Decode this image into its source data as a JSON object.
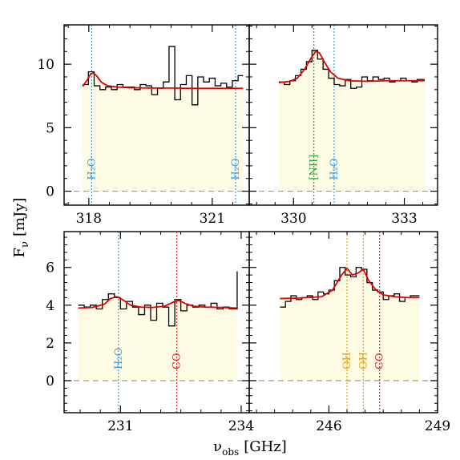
{
  "axis_labels": {
    "ylabel_main": "F",
    "ylabel_sub": "ν",
    "ylabel_unit": "[mJy]",
    "xlabel_main": "ν",
    "xlabel_sub": "obs",
    "xlabel_unit": "[GHz]"
  },
  "colors": {
    "fill": "#fdfbe3",
    "histogram": "#000000",
    "model": "#e00000",
    "zero_line": "#999999",
    "h2o": "#3a9ee0",
    "co": "#e02020",
    "nii": "#30a040",
    "oh": "#f0a000"
  },
  "chart_data": [
    {
      "type": "line",
      "panel": "top-left",
      "xlim": [
        317.4,
        321.9
      ],
      "ylim": [
        -1.1,
        13.1
      ],
      "xticks": [
        318,
        321
      ],
      "xtick_labels": [
        "318",
        "321"
      ],
      "yticks": [
        0,
        5,
        10
      ],
      "ytick_labels": [
        "0",
        "5",
        "10"
      ],
      "show_xtick_labels": true,
      "show_ytick_labels": true,
      "fill_range": [
        317.85,
        321.75
      ],
      "bin_edges": [
        317.85,
        317.99,
        318.13,
        318.27,
        318.41,
        318.55,
        318.69,
        318.83,
        318.97,
        319.11,
        319.25,
        319.39,
        319.53,
        319.67,
        319.81,
        319.95,
        320.09,
        320.23,
        320.37,
        320.51,
        320.65,
        320.79,
        320.93,
        321.07,
        321.21,
        321.35,
        321.49,
        321.63,
        321.75
      ],
      "flux": [
        8.4,
        9.4,
        8.3,
        8.0,
        8.2,
        8.0,
        8.4,
        8.2,
        8.2,
        8.0,
        8.4,
        8.3,
        7.6,
        8.1,
        8.6,
        11.4,
        7.2,
        8.4,
        9.1,
        6.8,
        9.0,
        8.6,
        8.9,
        8.3,
        8.5,
        8.2,
        8.7,
        9.1
      ],
      "model_x": [
        317.85,
        317.95,
        318.05,
        318.12,
        318.2,
        318.3,
        318.45,
        318.7,
        319.0,
        319.5,
        320.0,
        320.5,
        321.0,
        321.5,
        321.75
      ],
      "model_y": [
        8.25,
        8.7,
        9.25,
        9.3,
        9.05,
        8.6,
        8.3,
        8.2,
        8.15,
        8.12,
        8.12,
        8.1,
        8.1,
        8.1,
        8.1
      ],
      "lines": [
        {
          "x": 318.07,
          "label": "H₂O",
          "color_key": "h2o",
          "label_x_offset": -6
        },
        {
          "x": 321.57,
          "label": "H₂O",
          "color_key": "h2o",
          "label_x_offset": -6
        }
      ]
    },
    {
      "type": "line",
      "panel": "top-right",
      "xlim": [
        328.8,
        333.9
      ],
      "ylim": [
        -1.1,
        13.1
      ],
      "xticks": [
        330,
        333
      ],
      "xtick_labels": [
        "330",
        "333"
      ],
      "yticks": [
        0,
        5,
        10
      ],
      "ytick_labels": [],
      "show_xtick_labels": true,
      "show_ytick_labels": false,
      "fill_range": [
        329.6,
        333.55
      ],
      "bin_edges": [
        329.6,
        329.75,
        329.9,
        330.05,
        330.2,
        330.35,
        330.5,
        330.65,
        330.8,
        330.95,
        331.1,
        331.25,
        331.4,
        331.55,
        331.7,
        331.85,
        332.0,
        332.15,
        332.3,
        332.45,
        332.6,
        332.75,
        332.9,
        333.05,
        333.2,
        333.35,
        333.55
      ],
      "flux": [
        8.6,
        8.4,
        8.7,
        9.1,
        9.6,
        10.2,
        11.1,
        10.4,
        9.6,
        8.9,
        8.4,
        8.3,
        8.8,
        8.1,
        8.2,
        9.0,
        8.7,
        9.0,
        8.8,
        8.9,
        8.6,
        8.7,
        8.9,
        8.7,
        8.6,
        8.8
      ],
      "model_x": [
        329.6,
        329.9,
        330.1,
        330.3,
        330.5,
        330.6,
        330.7,
        330.85,
        331.0,
        331.2,
        331.5,
        332.0,
        332.5,
        333.0,
        333.55
      ],
      "model_y": [
        8.55,
        8.65,
        8.9,
        9.6,
        10.6,
        11.0,
        10.9,
        10.1,
        9.4,
        8.9,
        8.7,
        8.65,
        8.7,
        8.7,
        8.7
      ],
      "lines": [
        {
          "x": 330.55,
          "label": "[NII]",
          "color_key": "nii",
          "label_x_offset": -6
        },
        {
          "x": 331.1,
          "label": "H₂O",
          "color_key": "h2o",
          "label_x_offset": -6
        }
      ]
    },
    {
      "type": "line",
      "panel": "bottom-left",
      "xlim": [
        229.6,
        234.2
      ],
      "ylim": [
        -1.7,
        7.9
      ],
      "xticks": [
        231,
        234
      ],
      "xtick_labels": [
        "231",
        "234"
      ],
      "yticks": [
        0,
        2,
        4,
        6
      ],
      "ytick_labels": [
        "0",
        "2",
        "4",
        "6"
      ],
      "show_xtick_labels": true,
      "show_ytick_labels": true,
      "fill_range": [
        229.95,
        233.9
      ],
      "bin_edges": [
        229.95,
        230.1,
        230.25,
        230.4,
        230.55,
        230.7,
        230.85,
        231.0,
        231.15,
        231.3,
        231.45,
        231.6,
        231.75,
        231.9,
        232.05,
        232.2,
        232.35,
        232.5,
        232.65,
        232.8,
        232.95,
        233.1,
        233.25,
        233.4,
        233.55,
        233.7,
        233.9
      ],
      "flux": [
        4.0,
        3.9,
        4.0,
        3.8,
        4.3,
        4.6,
        4.4,
        3.8,
        4.2,
        3.9,
        3.5,
        4.0,
        3.2,
        4.1,
        3.9,
        2.9,
        4.3,
        3.7,
        4.0,
        3.9,
        4.0,
        3.9,
        4.1,
        3.8,
        3.9,
        3.8
      ],
      "end_spike": {
        "x": 233.9,
        "y": 5.8
      },
      "model_x": [
        229.95,
        230.3,
        230.6,
        230.75,
        230.9,
        231.05,
        231.25,
        231.5,
        231.8,
        232.1,
        232.3,
        232.45,
        232.6,
        232.8,
        233.1,
        233.5,
        233.9
      ],
      "model_y": [
        3.85,
        3.88,
        4.05,
        4.35,
        4.45,
        4.3,
        4.0,
        3.9,
        3.88,
        3.95,
        4.15,
        4.25,
        4.1,
        3.95,
        3.9,
        3.88,
        3.85
      ],
      "lines": [
        {
          "x": 230.95,
          "label": "H₂O",
          "color_key": "h2o",
          "label_x_offset": -6
        },
        {
          "x": 232.4,
          "label": "CO",
          "color_key": "co",
          "label_x_offset": -6
        }
      ]
    },
    {
      "type": "line",
      "panel": "bottom-right",
      "xlim": [
        243.8,
        249.0
      ],
      "ylim": [
        -1.7,
        7.9
      ],
      "xticks": [
        246,
        249
      ],
      "xtick_labels": [
        "246",
        "249"
      ],
      "yticks": [
        0,
        2,
        4,
        6
      ],
      "ytick_labels": [],
      "show_xtick_labels": true,
      "show_ytick_labels": false,
      "fill_range": [
        244.65,
        248.5
      ],
      "bin_edges": [
        244.65,
        244.8,
        244.95,
        245.1,
        245.25,
        245.4,
        245.55,
        245.7,
        245.85,
        246.0,
        246.15,
        246.3,
        246.45,
        246.6,
        246.75,
        246.9,
        247.05,
        247.2,
        247.35,
        247.5,
        247.65,
        247.8,
        247.95,
        248.1,
        248.25,
        248.5
      ],
      "flux": [
        3.9,
        4.2,
        4.5,
        4.3,
        4.4,
        4.5,
        4.3,
        4.7,
        4.6,
        4.8,
        5.3,
        6.0,
        5.6,
        5.5,
        6.0,
        5.9,
        5.2,
        4.8,
        4.7,
        4.3,
        4.5,
        4.6,
        4.2,
        4.4,
        4.5
      ],
      "model_x": [
        244.65,
        245.2,
        245.8,
        246.1,
        246.35,
        246.5,
        246.65,
        246.8,
        246.95,
        247.1,
        247.3,
        247.5,
        247.8,
        248.2,
        248.5
      ],
      "model_y": [
        4.35,
        4.38,
        4.45,
        4.8,
        5.6,
        5.95,
        5.6,
        5.7,
        5.9,
        5.3,
        4.8,
        4.55,
        4.45,
        4.4,
        4.4
      ],
      "lines": [
        {
          "x": 246.5,
          "label": "OH",
          "color_key": "oh",
          "label_x_offset": -6
        },
        {
          "x": 246.95,
          "label": "OH",
          "color_key": "oh",
          "label_x_offset": -6
        },
        {
          "x": 247.4,
          "label": "CO",
          "color_key": "co",
          "label_x_offset": -6
        }
      ]
    }
  ]
}
